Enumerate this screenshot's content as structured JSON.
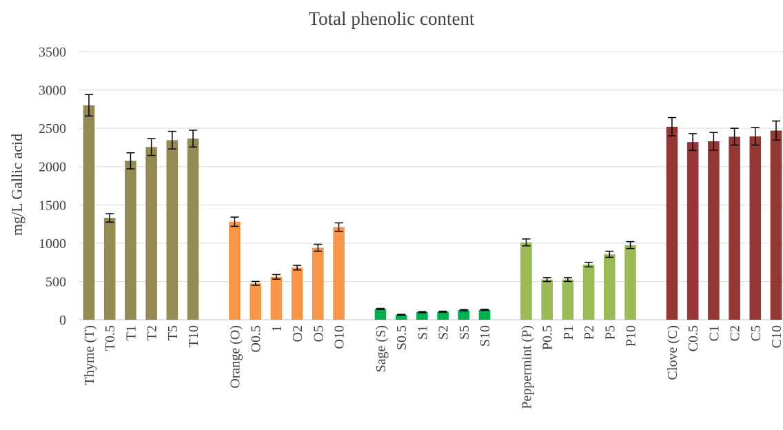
{
  "chart_data": {
    "type": "bar",
    "title": "Total phenolic content",
    "xlabel": "",
    "ylabel": "mg/L Gallic acid",
    "ylim": [
      0,
      3500
    ],
    "yticks": [
      0,
      500,
      1000,
      1500,
      2000,
      2500,
      3000,
      3500
    ],
    "grid": true,
    "legend": "none",
    "groups": [
      {
        "color": "#948A54",
        "categories": [
          "Thyme (T)",
          "T0.5",
          "T1",
          "T2",
          "T5",
          "T10"
        ],
        "values": [
          2800,
          1330,
          2075,
          2255,
          2345,
          2365
        ],
        "errors": [
          140,
          55,
          105,
          110,
          115,
          110
        ]
      },
      {
        "color": "#F79646",
        "categories": [
          "Orange (O)",
          "O0.5",
          "1",
          "O2",
          "O5",
          "O10"
        ],
        "values": [
          1280,
          475,
          560,
          680,
          940,
          1210
        ],
        "errors": [
          60,
          25,
          30,
          30,
          45,
          55
        ]
      },
      {
        "color": "#00B050",
        "categories": [
          "Sage (S)",
          "S0.5",
          "S1",
          "S2",
          "S5",
          "S10"
        ],
        "values": [
          140,
          65,
          100,
          105,
          125,
          130
        ],
        "errors": [
          8,
          5,
          7,
          7,
          8,
          8
        ]
      },
      {
        "color": "#9BBB59",
        "categories": [
          "Peppermint (P)",
          "P0.5",
          "P1",
          "P2",
          "P5",
          "P10"
        ],
        "values": [
          1010,
          525,
          525,
          720,
          855,
          975
        ],
        "errors": [
          45,
          25,
          25,
          30,
          40,
          45
        ]
      },
      {
        "color": "#953735",
        "categories": [
          "Clove (C)",
          "C0.5",
          "C1",
          "C2",
          "C5",
          "C10"
        ],
        "values": [
          2520,
          2320,
          2330,
          2390,
          2395,
          2470
        ],
        "errors": [
          120,
          110,
          115,
          110,
          115,
          125
        ]
      }
    ]
  }
}
